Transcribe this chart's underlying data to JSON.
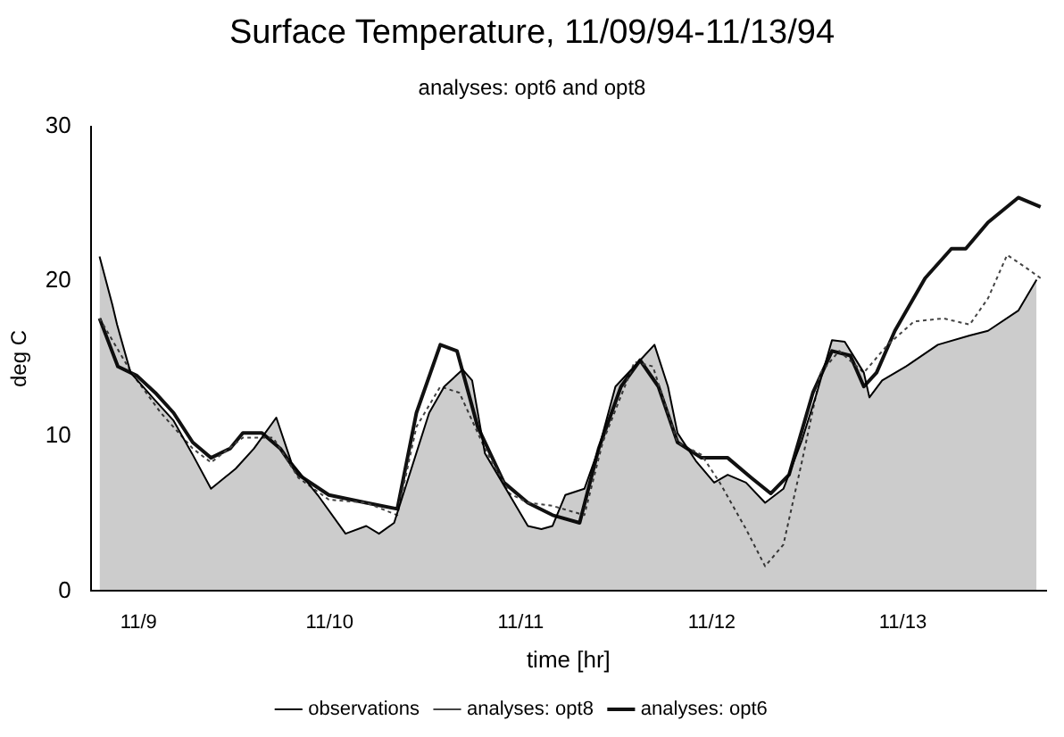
{
  "chart_data": {
    "type": "line",
    "title": "Surface Temperature, 11/09/94-11/13/94",
    "subtitle": "analyses: opt6 and opt8",
    "xlabel": "time [hr]",
    "ylabel": "deg C",
    "xlim": [
      "--11-08T18:00",
      "--11-13T18:00"
    ],
    "xticks": [
      {
        "value": "--11-09",
        "label": "11/9"
      },
      {
        "value": "--11-10",
        "label": "11/10"
      },
      {
        "value": "--11-11",
        "label": "11/11"
      },
      {
        "value": "--11-12",
        "label": "11/12"
      },
      {
        "value": "--11-13",
        "label": "11/13"
      }
    ],
    "ylim": [
      0,
      30
    ],
    "yticks": [
      0,
      10,
      20,
      30
    ],
    "grid": false,
    "legend": "bottom",
    "marker": "none",
    "series": [
      {
        "name": "observations",
        "type": "area",
        "color": "#000000",
        "line_style": "solid",
        "x": [
          "--11-08T19:06",
          "--11-08T20:42",
          "--11-08T21:18",
          "--11-08T23:00",
          "--11-09T02:06",
          "--11-09T04:24",
          "--11-09T06:48",
          "--11-09T09:06",
          "--11-09T12:12",
          "--11-09T14:30",
          "--11-09T17:18",
          "--11-09T19:12",
          "--11-09T22:30",
          "--11-10T02:00",
          "--11-10T04:36",
          "--11-10T06:12",
          "--11-10T08:06",
          "--11-10T12:30",
          "--11-10T14:24",
          "--11-10T16:42",
          "--11-10T17:54",
          "--11-10T19:30",
          "--11-10T22:36",
          "--11-11T00:54",
          "--11-11T02:36",
          "--11-11T04:00",
          "--11-11T05:36",
          "--11-11T08:00",
          "--11-11T09:48",
          "--11-11T11:54",
          "--11-11T15:00",
          "--11-11T16:48",
          "--11-11T18:30",
          "--11-11T19:42",
          "--11-11T22:00",
          "--11-12T00:18",
          "--11-12T02:00",
          "--11-12T04:18",
          "--11-12T06:42",
          "--11-12T09:00",
          "--11-12T11:18",
          "--11-12T13:12",
          "--11-12T15:06",
          "--11-12T16:42",
          "--11-12T19:06",
          "--11-12T19:48",
          "--11-12T21:24",
          "--11-13T00:24",
          "--11-13T04:24",
          "--11-13T08:24",
          "--11-13T10:42",
          "--11-13T14:30",
          "--11-13T16:48"
        ],
        "values": [
          21.6,
          18.5,
          17.2,
          14.1,
          12.3,
          11.0,
          8.8,
          6.6,
          7.9,
          9.2,
          11.2,
          8.3,
          6.2,
          3.7,
          4.2,
          3.7,
          4.4,
          11.5,
          13.2,
          14.3,
          13.6,
          8.9,
          6.2,
          4.2,
          4.0,
          4.2,
          6.2,
          6.6,
          9.2,
          13.2,
          14.9,
          15.9,
          13.2,
          10.2,
          8.4,
          7.0,
          7.5,
          7.0,
          5.7,
          6.6,
          9.7,
          12.8,
          16.2,
          16.1,
          14.1,
          12.5,
          13.6,
          14.5,
          15.9,
          16.5,
          16.8,
          18.1,
          20.1
        ]
      },
      {
        "name": "analyses: opt8",
        "color": "#444444",
        "line_style": "dotted",
        "x": [
          "--11-08T19:06",
          "--11-08T23:06",
          "--11-09T02:48",
          "--11-09T06:48",
          "--11-09T09:06",
          "--11-09T13:06",
          "--11-09T16:54",
          "--11-09T20:06",
          "--11-09T23:54",
          "--11-10T04:36",
          "--11-10T08:30",
          "--11-10T10:54",
          "--11-10T13:54",
          "--11-10T16:18",
          "--11-10T19:30",
          "--11-10T22:36",
          "--11-11T00:54",
          "--11-11T04:00",
          "--11-11T08:00",
          "--11-11T10:18",
          "--11-11T14:18",
          "--11-11T16:36",
          "--11-11T19:42",
          "--11-11T22:42",
          "--11-12T01:00",
          "--11-12T04:18",
          "--11-12T06:42",
          "--11-12T09:00",
          "--11-12T11:18",
          "--11-12T13:42",
          "--11-12T16:00",
          "--11-12T19:06",
          "--11-12T22:06",
          "--11-13T01:24",
          "--11-13T05:06",
          "--11-13T08:24",
          "--11-13T10:42",
          "--11-13T13:06",
          "--11-13T15:24",
          "--11-13T17:18"
        ],
        "values": [
          17.6,
          14.1,
          11.5,
          9.2,
          8.3,
          9.9,
          9.9,
          7.3,
          5.9,
          5.7,
          4.9,
          10.6,
          13.2,
          12.8,
          9.2,
          6.3,
          5.7,
          5.5,
          4.9,
          9.6,
          14.8,
          14.5,
          9.6,
          8.8,
          7.0,
          4.0,
          1.6,
          3.0,
          8.3,
          14.1,
          15.5,
          14.1,
          15.9,
          17.4,
          17.6,
          17.2,
          18.9,
          21.7,
          20.9,
          20.2
        ]
      },
      {
        "name": "analyses: opt6",
        "color": "#111111",
        "line_style": "solid",
        "x": [
          "--11-08T19:06",
          "--11-08T21:24",
          "--11-08T23:48",
          "--11-09T02:06",
          "--11-09T04:24",
          "--11-09T06:48",
          "--11-09T09:06",
          "--11-09T11:30",
          "--11-09T13:06",
          "--11-09T15:30",
          "--11-09T17:48",
          "--11-09T20:06",
          "--11-09T23:54",
          "--11-10T04:36",
          "--11-10T08:30",
          "--11-10T10:54",
          "--11-10T13:54",
          "--11-10T16:00",
          "--11-10T18:36",
          "--11-10T21:54",
          "--11-11T00:54",
          "--11-11T04:00",
          "--11-11T07:24",
          "--11-11T09:48",
          "--11-11T12:36",
          "--11-11T15:00",
          "--11-11T17:18",
          "--11-11T19:42",
          "--11-11T22:42",
          "--11-12T02:00",
          "--11-12T05:00",
          "--11-12T07:24",
          "--11-12T09:42",
          "--11-12T12:42",
          "--11-12T15:06",
          "--11-12T17:24",
          "--11-12T19:06",
          "--11-12T20:42",
          "--11-12T23:00",
          "--11-13T02:48",
          "--11-13T06:06",
          "--11-13T07:54",
          "--11-13T10:42",
          "--11-13T14:30",
          "--11-13T17:18"
        ],
        "values": [
          17.6,
          14.5,
          13.9,
          12.8,
          11.5,
          9.6,
          8.6,
          9.2,
          10.2,
          10.2,
          9.2,
          7.5,
          6.2,
          5.7,
          5.3,
          11.5,
          15.9,
          15.5,
          10.6,
          7.0,
          5.7,
          4.9,
          4.4,
          9.2,
          13.2,
          14.9,
          13.2,
          9.6,
          8.6,
          8.6,
          7.3,
          6.3,
          7.5,
          12.8,
          15.5,
          15.2,
          13.2,
          14.1,
          16.8,
          20.2,
          22.1,
          22.1,
          23.8,
          25.4,
          24.8
        ]
      }
    ]
  }
}
